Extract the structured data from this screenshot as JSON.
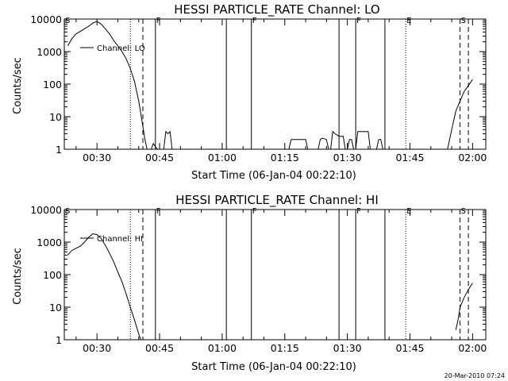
{
  "timestamp": "20-Mar-2010 07:24",
  "chart_data": [
    {
      "type": "line",
      "title": "HESSI PARTICLE_RATE Channel: LO",
      "xlabel": "Start Time (06-Jan-04 00:22:10)",
      "ylabel": "Counts/sec",
      "y_scale": "log",
      "ylim": [
        1,
        10000
      ],
      "xlim_minutes_after_0022": [
        0,
        101
      ],
      "x_ticks": [
        "00:30",
        "00:45",
        "01:00",
        "01:15",
        "01:30",
        "01:45",
        "02:00"
      ],
      "y_ticks": [
        "1",
        "10",
        "100",
        "1000",
        "10000"
      ],
      "legend": "Channel: LO",
      "markers": [
        {
          "label": "S",
          "time": "00:22",
          "style": "label"
        },
        {
          "time": "00:38",
          "style": "dotted"
        },
        {
          "time": "00:41",
          "style": "dashed"
        },
        {
          "label": "F",
          "time": "00:44",
          "style": "solid"
        },
        {
          "time": "01:01",
          "style": "solid"
        },
        {
          "label": "F",
          "time": "01:07",
          "style": "solid"
        },
        {
          "time": "01:28",
          "style": "solid"
        },
        {
          "label": "F",
          "time": "01:32",
          "style": "solid"
        },
        {
          "time": "01:39",
          "style": "solid"
        },
        {
          "label": "E",
          "time": "01:44",
          "style": "dotted"
        },
        {
          "label": "S",
          "time": "01:57",
          "style": "dashed"
        },
        {
          "time": "01:59",
          "style": "dashed"
        }
      ],
      "series": [
        {
          "segments": [
            [
              [
                "00:22",
                900
              ],
              [
                "00:23",
                1500
              ],
              [
                "00:24",
                2500
              ],
              [
                "00:25",
                3500
              ],
              [
                "00:26",
                4200
              ],
              [
                "00:27",
                5000
              ],
              [
                "00:28",
                6000
              ],
              [
                "00:29",
                7500
              ],
              [
                "00:30",
                8500
              ],
              [
                "00:31",
                7000
              ],
              [
                "00:32",
                5000
              ],
              [
                "00:33",
                3500
              ],
              [
                "00:34",
                2200
              ],
              [
                "00:35",
                1500
              ],
              [
                "00:36",
                1000
              ],
              [
                "00:37",
                600
              ],
              [
                "00:38",
                300
              ],
              [
                "00:39",
                120
              ],
              [
                "00:40",
                30
              ],
              [
                "00:41",
                5
              ],
              [
                "00:41.5",
                2
              ],
              [
                "00:42",
                1
              ]
            ],
            [
              [
                "00:43",
                1
              ],
              [
                "00:43.5",
                1.5
              ],
              [
                "00:44",
                1.2
              ],
              [
                "00:44.5",
                1
              ]
            ],
            [
              [
                "00:46",
                1
              ],
              [
                "00:46.5",
                3.5
              ],
              [
                "00:47",
                3
              ],
              [
                "00:47.5",
                3.5
              ],
              [
                "00:48",
                1
              ]
            ],
            [
              [
                "01:16",
                1
              ],
              [
                "01:16.5",
                2
              ],
              [
                "01:18",
                2
              ],
              [
                "01:20",
                2
              ],
              [
                "01:20.5",
                1
              ]
            ],
            [
              [
                "01:23",
                1
              ],
              [
                "01:23.5",
                2
              ],
              [
                "01:24",
                2.2
              ],
              [
                "01:25",
                2
              ],
              [
                "01:25.5",
                1
              ]
            ],
            [
              [
                "01:26",
                1
              ],
              [
                "01:26.5",
                3.5
              ],
              [
                "01:27",
                3
              ],
              [
                "01:28",
                2.5
              ],
              [
                "01:29",
                2.5
              ],
              [
                "01:29.5",
                1
              ]
            ],
            [
              [
                "01:30",
                1
              ],
              [
                "01:30.5",
                2
              ],
              [
                "01:31",
                2
              ],
              [
                "01:31.5",
                1
              ]
            ],
            [
              [
                "01:32",
                1
              ],
              [
                "01:32.5",
                3.5
              ],
              [
                "01:33",
                3.5
              ],
              [
                "01:35",
                3.5
              ],
              [
                "01:35.5",
                1
              ]
            ],
            [
              [
                "01:37",
                1
              ],
              [
                "01:37.5",
                2
              ],
              [
                "01:38",
                2
              ],
              [
                "01:38.5",
                1
              ]
            ],
            [
              [
                "01:54",
                1
              ],
              [
                "01:55",
                4
              ],
              [
                "01:56",
                15
              ],
              [
                "01:57",
                30
              ],
              [
                "01:58",
                60
              ],
              [
                "01:59",
                90
              ],
              [
                "02:00",
                140
              ]
            ]
          ]
        }
      ]
    },
    {
      "type": "line",
      "title": "HESSI PARTICLE_RATE Channel: HI",
      "xlabel": "Start Time (06-Jan-04 00:22:10)",
      "ylabel": "Counts/sec",
      "y_scale": "log",
      "ylim": [
        1,
        10000
      ],
      "xlim_minutes_after_0022": [
        0,
        101
      ],
      "x_ticks": [
        "00:30",
        "00:45",
        "01:00",
        "01:15",
        "01:30",
        "01:45",
        "02:00"
      ],
      "y_ticks": [
        "1",
        "10",
        "100",
        "1000",
        "10000"
      ],
      "legend": "Channel: HI",
      "markers": [
        {
          "label": "S",
          "time": "00:22",
          "style": "label"
        },
        {
          "time": "00:38",
          "style": "dotted"
        },
        {
          "time": "00:41",
          "style": "dashed"
        },
        {
          "label": "F",
          "time": "00:44",
          "style": "solid"
        },
        {
          "time": "01:01",
          "style": "solid"
        },
        {
          "label": "F",
          "time": "01:07",
          "style": "solid"
        },
        {
          "time": "01:28",
          "style": "solid"
        },
        {
          "label": "F",
          "time": "01:32",
          "style": "solid"
        },
        {
          "time": "01:39",
          "style": "solid"
        },
        {
          "label": "E",
          "time": "01:44",
          "style": "dotted"
        },
        {
          "label": "S",
          "time": "01:57",
          "style": "dashed"
        },
        {
          "time": "01:59",
          "style": "dashed"
        }
      ],
      "series": [
        {
          "segments": [
            [
              [
                "00:22",
                200
              ],
              [
                "00:23",
                400
              ],
              [
                "00:24",
                550
              ],
              [
                "00:25",
                650
              ],
              [
                "00:26",
                750
              ],
              [
                "00:27",
                1000
              ],
              [
                "00:28",
                1400
              ],
              [
                "00:29",
                1800
              ],
              [
                "00:30",
                1700
              ],
              [
                "00:31",
                1300
              ],
              [
                "00:32",
                800
              ],
              [
                "00:33",
                450
              ],
              [
                "00:34",
                250
              ],
              [
                "00:35",
                120
              ],
              [
                "00:36",
                60
              ],
              [
                "00:37",
                25
              ],
              [
                "00:38",
                10
              ],
              [
                "00:39",
                4
              ],
              [
                "00:40",
                1.5
              ],
              [
                "00:40.5",
                1
              ]
            ],
            [
              [
                "01:56",
                2
              ],
              [
                "01:56.5",
                4
              ],
              [
                "01:57",
                10
              ],
              [
                "01:58",
                20
              ],
              [
                "01:59",
                35
              ],
              [
                "02:00",
                55
              ]
            ]
          ]
        }
      ]
    }
  ]
}
